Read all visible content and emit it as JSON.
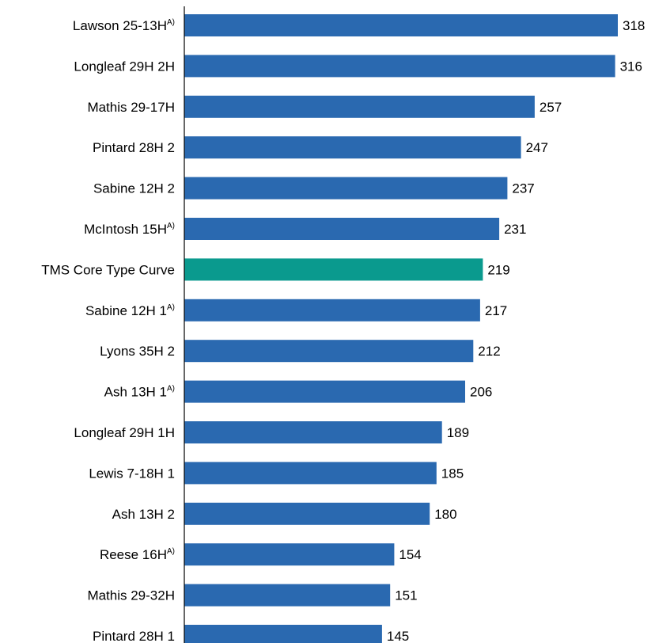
{
  "chart_data": {
    "type": "bar",
    "orientation": "horizontal",
    "categories": [
      {
        "name": "Lawson 25-13H",
        "sup": "A)"
      },
      {
        "name": "Longleaf 29H 2H",
        "sup": ""
      },
      {
        "name": "Mathis 29-17H",
        "sup": ""
      },
      {
        "name": "Pintard 28H 2",
        "sup": ""
      },
      {
        "name": "Sabine 12H 2",
        "sup": ""
      },
      {
        "name": "McIntosh 15H",
        "sup": "A)"
      },
      {
        "name": "TMS Core Type Curve",
        "sup": ""
      },
      {
        "name": "Sabine 12H 1",
        "sup": "A)"
      },
      {
        "name": "Lyons 35H 2",
        "sup": ""
      },
      {
        "name": "Ash 13H 1",
        "sup": "A)"
      },
      {
        "name": "Longleaf 29H 1H",
        "sup": ""
      },
      {
        "name": "Lewis 7-18H 1",
        "sup": ""
      },
      {
        "name": "Ash 13H 2",
        "sup": ""
      },
      {
        "name": "Reese 16H",
        "sup": "A)"
      },
      {
        "name": "Mathis 29-32H",
        "sup": ""
      },
      {
        "name": "Pintard 28H 1",
        "sup": ""
      }
    ],
    "values": [
      318,
      316,
      257,
      247,
      237,
      231,
      219,
      217,
      212,
      206,
      189,
      185,
      180,
      154,
      151,
      145
    ],
    "highlight_index": 6,
    "data_labels": true,
    "xlim": [
      0,
      330
    ],
    "grid": false,
    "legend": "none",
    "colors": {
      "bar": "#2A69B0",
      "highlight": "#0A9A8E",
      "axis": "#000000",
      "text": "#000000"
    }
  }
}
